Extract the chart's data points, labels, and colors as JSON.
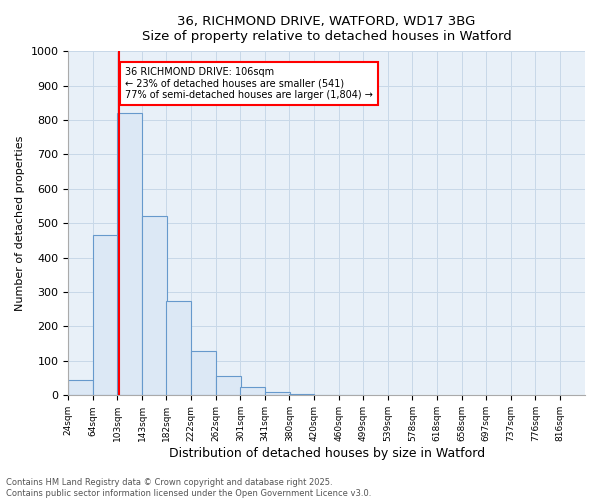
{
  "title_line1": "36, RICHMOND DRIVE, WATFORD, WD17 3BG",
  "title_line2": "Size of property relative to detached houses in Watford",
  "xlabel": "Distribution of detached houses by size in Watford",
  "ylabel": "Number of detached properties",
  "bin_edges": [
    24,
    64,
    103,
    143,
    182,
    222,
    262,
    301,
    341,
    380,
    420,
    460,
    499,
    539,
    578,
    618,
    658,
    697,
    737,
    776,
    816
  ],
  "bar_heights": [
    45,
    465,
    820,
    520,
    275,
    130,
    55,
    25,
    10,
    4,
    2,
    1,
    0,
    0,
    0,
    0,
    0,
    0,
    0,
    0
  ],
  "bar_color": "#dce8f5",
  "bar_edge_color": "#6699cc",
  "red_line_x": 106,
  "annotation_text": "36 RICHMOND DRIVE: 106sqm\n← 23% of detached houses are smaller (541)\n77% of semi-detached houses are larger (1,804) →",
  "annotation_box_color": "white",
  "annotation_box_edge": "red",
  "ylim": [
    0,
    1000
  ],
  "yticks": [
    0,
    100,
    200,
    300,
    400,
    500,
    600,
    700,
    800,
    900,
    1000
  ],
  "grid_color": "#c8d8e8",
  "background_color": "#e8f0f8",
  "footer_line1": "Contains HM Land Registry data © Crown copyright and database right 2025.",
  "footer_line2": "Contains public sector information licensed under the Open Government Licence v3.0.",
  "tick_labels": [
    "24sqm",
    "64sqm",
    "103sqm",
    "143sqm",
    "182sqm",
    "222sqm",
    "262sqm",
    "301sqm",
    "341sqm",
    "380sqm",
    "420sqm",
    "460sqm",
    "499sqm",
    "539sqm",
    "578sqm",
    "618sqm",
    "658sqm",
    "697sqm",
    "737sqm",
    "776sqm",
    "816sqm"
  ]
}
